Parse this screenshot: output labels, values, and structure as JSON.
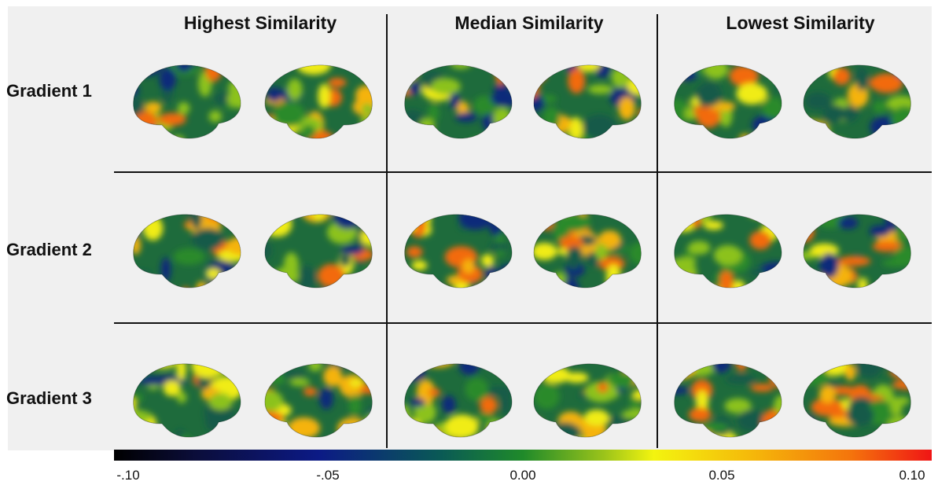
{
  "columns": [
    "Highest Similarity",
    "Median Similarity",
    "Lowest Similarity"
  ],
  "rows": [
    "Gradient 1",
    "Gradient 2",
    "Gradient 3"
  ],
  "colorbar": {
    "ticks": [
      "-.10",
      "-.05",
      "0.00",
      "0.05",
      "0.10"
    ],
    "range": [
      -0.1,
      0.1
    ],
    "colors": [
      "#000000",
      "#0c1a86",
      "#1f8a2a",
      "#f3f40f",
      "#f4750c",
      "#f01515"
    ]
  }
}
